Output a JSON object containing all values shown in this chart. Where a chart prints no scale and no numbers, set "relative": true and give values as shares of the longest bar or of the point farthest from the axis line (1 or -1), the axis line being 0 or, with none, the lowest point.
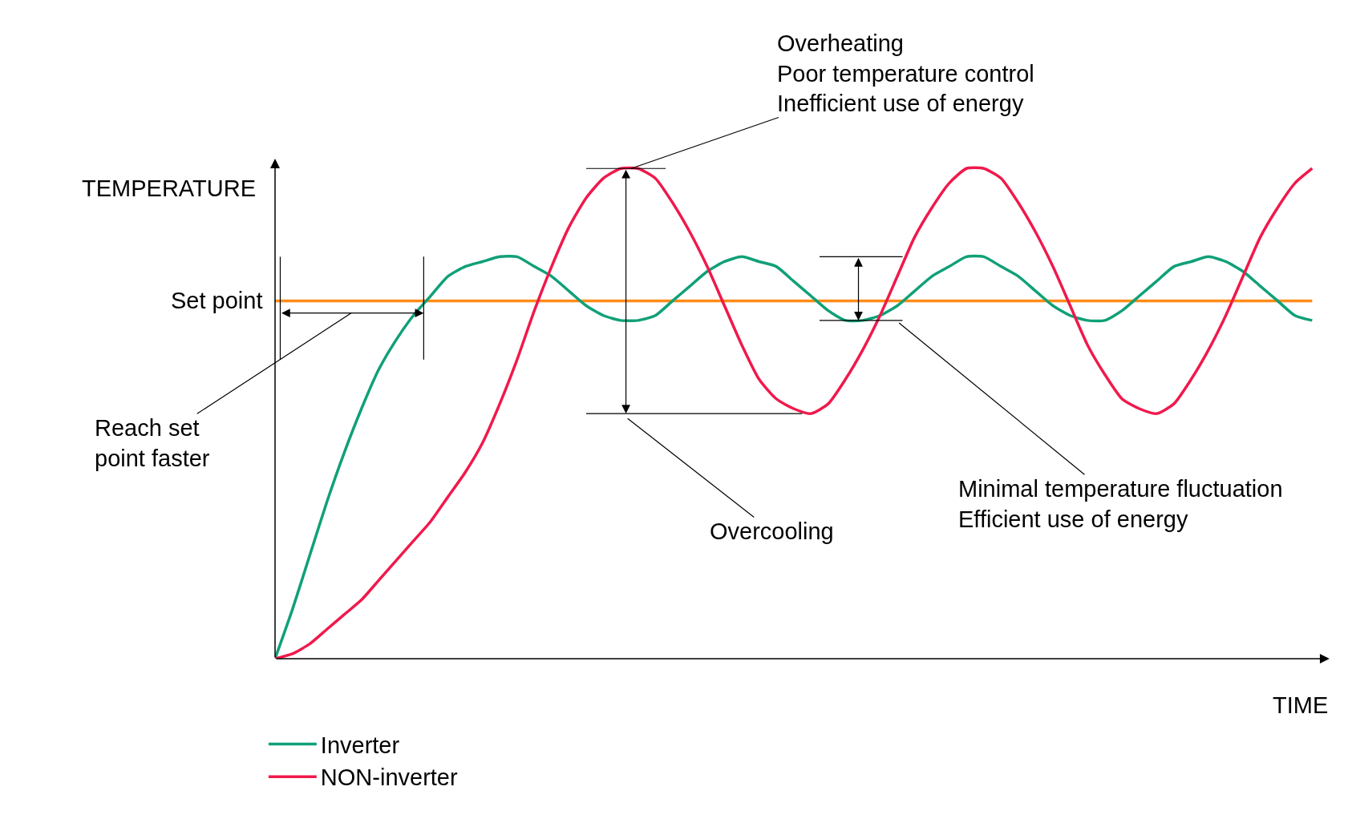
{
  "chart_data": {
    "type": "line",
    "relative": true,
    "xlabel": "TIME",
    "ylabel": "TEMPERATURE",
    "legend": "bottom left",
    "grid": false,
    "marker": "none",
    "line_style": "solid",
    "categories": [
      null,
      null,
      null,
      null,
      null,
      null,
      null,
      null,
      null,
      null,
      null,
      null,
      null,
      null,
      null,
      null,
      null,
      null,
      null,
      null,
      null,
      null,
      null,
      null,
      null,
      null,
      null,
      null,
      null,
      null,
      null,
      null,
      null,
      null,
      null,
      null,
      null,
      null,
      null,
      null,
      null,
      null,
      null,
      null,
      null,
      null,
      null,
      null,
      null,
      null,
      null,
      null,
      null,
      null,
      null,
      null,
      null,
      null,
      null,
      null,
      null
    ],
    "series": [
      {
        "name": "Inverter",
        "color": "#10a078",
        "values": [
          0,
          0.1,
          0.21,
          0.32,
          0.42,
          0.51,
          0.59,
          0.65,
          0.7,
          0.74,
          0.78,
          0.8,
          0.81,
          0.82,
          0.82,
          0.8,
          0.78,
          0.75,
          0.72,
          0.7,
          0.69,
          0.69,
          0.7,
          0.73,
          0.76,
          0.79,
          0.81,
          0.82,
          0.81,
          0.8,
          0.77,
          0.74,
          0.71,
          0.69,
          0.69,
          0.7,
          0.72,
          0.75,
          0.78,
          0.8,
          0.82,
          0.82,
          0.8,
          0.78,
          0.75,
          0.72,
          0.7,
          0.69,
          0.69,
          0.71,
          0.74,
          0.77,
          0.8,
          0.81,
          0.82,
          0.81,
          0.79,
          0.76,
          0.73,
          0.7,
          0.69
        ]
      },
      {
        "name": "NON-inverter",
        "color": "#f0194b",
        "values": [
          0,
          0.01,
          0.03,
          0.06,
          0.09,
          0.12,
          0.16,
          0.2,
          0.24,
          0.28,
          0.33,
          0.38,
          0.44,
          0.52,
          0.61,
          0.71,
          0.8,
          0.88,
          0.94,
          0.98,
          1.0,
          1.0,
          0.98,
          0.93,
          0.87,
          0.8,
          0.72,
          0.64,
          0.57,
          0.53,
          0.51,
          0.5,
          0.52,
          0.57,
          0.63,
          0.7,
          0.78,
          0.86,
          0.92,
          0.97,
          1.0,
          1.0,
          0.98,
          0.93,
          0.87,
          0.8,
          0.72,
          0.64,
          0.58,
          0.53,
          0.51,
          0.5,
          0.52,
          0.57,
          0.63,
          0.7,
          0.78,
          0.86,
          0.92,
          0.97,
          1.0
        ]
      }
    ],
    "ref_lines": [
      {
        "axis": "y",
        "value": 0.73,
        "label": "Set point",
        "color": "#ff8c1a",
        "line_style": "solid"
      }
    ],
    "annotations": [
      "Overheating\nPoor temperature control\nInefficient use of energy",
      "Reach set\npoint faster",
      "Overcooling",
      "Minimal temperature fluctuation\nEfficient use of energy"
    ]
  }
}
